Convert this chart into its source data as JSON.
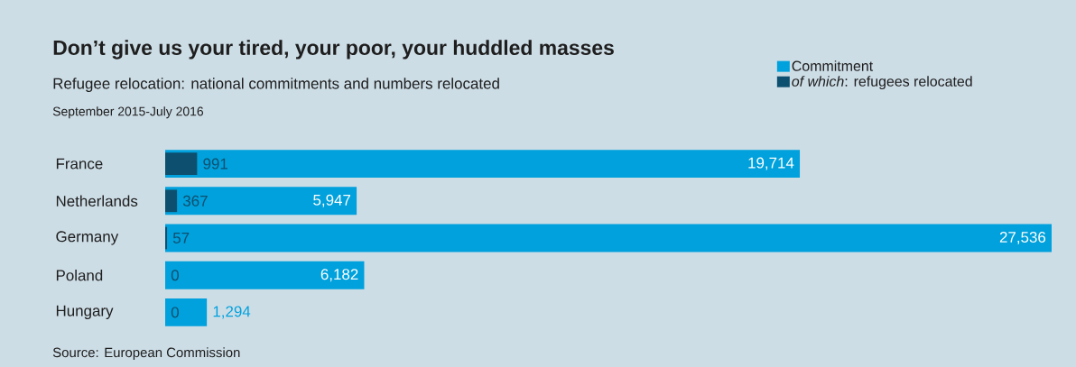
{
  "chart_data": {
    "type": "bar",
    "orientation": "horizontal",
    "title": "Don’t give us your tired, your poor, your huddled masses",
    "subtitle": "Refugee relocation: national commitments and numbers relocated",
    "annotations": [
      "September 2015-July 2016",
      "Source: European Commission"
    ],
    "categories": [
      "France",
      "Netherlands",
      "Germany",
      "Poland",
      "Hungary"
    ],
    "xlim": [
      0,
      27536
    ],
    "tick_labels": "y",
    "legend": "top right",
    "data_labels": true,
    "series": [
      {
        "name": "Commitment",
        "color": "#00a1dc",
        "values": [
          19714,
          5947,
          27536,
          6182,
          1294
        ],
        "value_labels": [
          "19,714",
          "5,947",
          "27,536",
          "6,182",
          "1,294"
        ]
      },
      {
        "name": "*of which*: refugees relocated",
        "color": "#0d4f6e",
        "values": [
          991,
          367,
          57,
          0,
          0
        ],
        "value_labels": [
          "991",
          "367",
          "57",
          "0",
          "0"
        ]
      }
    ]
  }
}
